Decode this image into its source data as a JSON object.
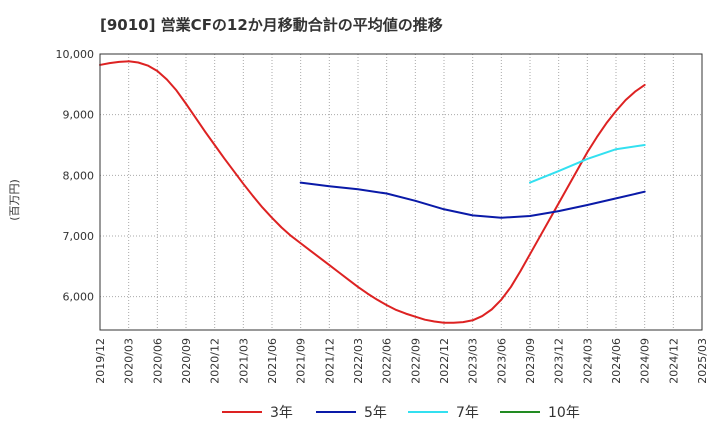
{
  "title": "[9010]  営業CFの12か月移動合計の平均値の推移",
  "chart_data": {
    "type": "line",
    "ylabel": "(百万円)",
    "xlabel": "",
    "ylim": [
      5450,
      10000
    ],
    "yticks": [
      6000,
      7000,
      8000,
      9000,
      10000
    ],
    "ytick_labels": [
      "6,000",
      "7,000",
      "8,000",
      "9,000",
      "10,000"
    ],
    "xtick_labels": [
      "2019/12",
      "2020/03",
      "2020/06",
      "2020/09",
      "2020/12",
      "2021/03",
      "2021/06",
      "2021/09",
      "2021/12",
      "2022/03",
      "2022/06",
      "2022/09",
      "2022/12",
      "2023/03",
      "2023/06",
      "2023/09",
      "2023/12",
      "2024/03",
      "2024/06",
      "2024/09",
      "2024/12",
      "2025/03"
    ],
    "grid": true,
    "legend_position": "bottom",
    "series": [
      {
        "name": "3年",
        "color": "#dd2222",
        "points": [
          [
            "2019/12",
            9820
          ],
          [
            "2020/01",
            9850
          ],
          [
            "2020/02",
            9870
          ],
          [
            "2020/03",
            9880
          ],
          [
            "2020/04",
            9860
          ],
          [
            "2020/05",
            9810
          ],
          [
            "2020/06",
            9720
          ],
          [
            "2020/07",
            9580
          ],
          [
            "2020/08",
            9400
          ],
          [
            "2020/09",
            9180
          ],
          [
            "2020/10",
            8950
          ],
          [
            "2020/11",
            8720
          ],
          [
            "2020/12",
            8500
          ],
          [
            "2021/01",
            8280
          ],
          [
            "2021/02",
            8070
          ],
          [
            "2021/03",
            7860
          ],
          [
            "2021/04",
            7660
          ],
          [
            "2021/05",
            7470
          ],
          [
            "2021/06",
            7300
          ],
          [
            "2021/07",
            7140
          ],
          [
            "2021/08",
            7000
          ],
          [
            "2021/09",
            6880
          ],
          [
            "2021/10",
            6760
          ],
          [
            "2021/11",
            6640
          ],
          [
            "2021/12",
            6520
          ],
          [
            "2022/01",
            6400
          ],
          [
            "2022/02",
            6280
          ],
          [
            "2022/03",
            6160
          ],
          [
            "2022/04",
            6050
          ],
          [
            "2022/05",
            5950
          ],
          [
            "2022/06",
            5860
          ],
          [
            "2022/07",
            5780
          ],
          [
            "2022/08",
            5720
          ],
          [
            "2022/09",
            5670
          ],
          [
            "2022/10",
            5620
          ],
          [
            "2022/11",
            5590
          ],
          [
            "2022/12",
            5570
          ],
          [
            "2023/01",
            5570
          ],
          [
            "2023/02",
            5580
          ],
          [
            "2023/03",
            5610
          ],
          [
            "2023/04",
            5680
          ],
          [
            "2023/05",
            5790
          ],
          [
            "2023/06",
            5950
          ],
          [
            "2023/07",
            6160
          ],
          [
            "2023/08",
            6420
          ],
          [
            "2023/09",
            6700
          ],
          [
            "2023/10",
            6980
          ],
          [
            "2023/11",
            7260
          ],
          [
            "2023/12",
            7540
          ],
          [
            "2024/01",
            7820
          ],
          [
            "2024/02",
            8100
          ],
          [
            "2024/03",
            8380
          ],
          [
            "2024/04",
            8630
          ],
          [
            "2024/05",
            8860
          ],
          [
            "2024/06",
            9060
          ],
          [
            "2024/07",
            9240
          ],
          [
            "2024/08",
            9380
          ],
          [
            "2024/09",
            9490
          ]
        ]
      },
      {
        "name": "5年",
        "color": "#0a1aa8",
        "points": [
          [
            "2021/09",
            7880
          ],
          [
            "2021/12",
            7820
          ],
          [
            "2022/03",
            7770
          ],
          [
            "2022/06",
            7700
          ],
          [
            "2022/09",
            7580
          ],
          [
            "2022/12",
            7440
          ],
          [
            "2023/03",
            7340
          ],
          [
            "2023/06",
            7300
          ],
          [
            "2023/09",
            7330
          ],
          [
            "2023/12",
            7410
          ],
          [
            "2024/03",
            7510
          ],
          [
            "2024/06",
            7620
          ],
          [
            "2024/09",
            7730
          ]
        ]
      },
      {
        "name": "7年",
        "color": "#33e0f0",
        "points": [
          [
            "2023/09",
            7880
          ],
          [
            "2023/12",
            8070
          ],
          [
            "2024/03",
            8270
          ],
          [
            "2024/06",
            8430
          ],
          [
            "2024/09",
            8500
          ]
        ]
      },
      {
        "name": "10年",
        "color": "#228b22",
        "points": []
      }
    ]
  }
}
